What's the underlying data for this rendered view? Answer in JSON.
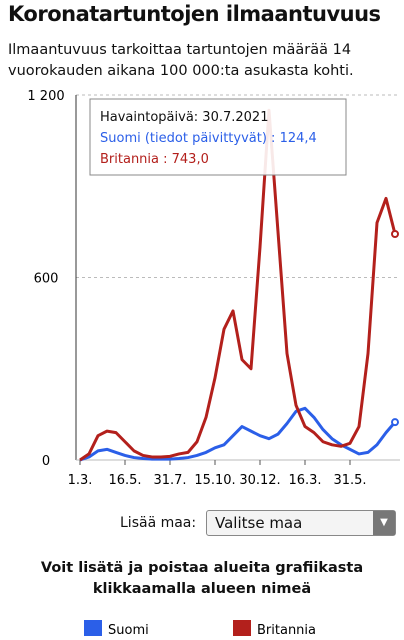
{
  "header": {
    "title": "Koronatartuntojen ilmaantuvuus",
    "subtitle": "Ilmaantuvuus tarkoittaa tartuntojen määrää 14 vuorokauden aikana 100 000:ta asukasta kohti."
  },
  "chart_data": {
    "type": "line",
    "categories": [
      "1.3.",
      null,
      null,
      null,
      null,
      "16.5.",
      null,
      null,
      null,
      null,
      "31.7.",
      null,
      null,
      null,
      null,
      "15.10.",
      null,
      null,
      null,
      null,
      "30.12.",
      null,
      null,
      null,
      null,
      "16.3.",
      null,
      null,
      null,
      null,
      "31.5.",
      null,
      null,
      null,
      null,
      null
    ],
    "series": [
      {
        "name": "Suomi",
        "color": "#2b5fe8",
        "values": [
          0,
          10,
          30,
          35,
          25,
          15,
          8,
          5,
          3,
          3,
          3,
          5,
          8,
          15,
          25,
          40,
          50,
          80,
          110,
          95,
          80,
          70,
          85,
          120,
          160,
          170,
          140,
          100,
          70,
          50,
          35,
          20,
          25,
          50,
          90,
          124.4
        ]
      },
      {
        "name": "Britannia",
        "color": "#b3201c",
        "values": [
          0,
          20,
          80,
          95,
          90,
          60,
          30,
          15,
          10,
          10,
          12,
          20,
          25,
          60,
          140,
          270,
          430,
          490,
          330,
          300,
          700,
          1150,
          750,
          350,
          180,
          110,
          90,
          60,
          50,
          45,
          55,
          110,
          350,
          780,
          860,
          743
        ]
      }
    ],
    "ylim": [
      0,
      1200
    ],
    "yticks": [
      0,
      600,
      {
        "value": 1200,
        "label": "1 200"
      }
    ],
    "grid": true,
    "annotations": [
      "Havaintopäivä: 30.7.2021",
      "Suomi (tiedot päivittyvät) : 124,4",
      "Britannia : 743,0"
    ]
  },
  "controls": {
    "add_label": "Lisää maa:",
    "select": "Valitse maa",
    "hint": "Voit lisätä ja poistaa alueita grafiikasta klikkaamalla alueen nimeä"
  }
}
